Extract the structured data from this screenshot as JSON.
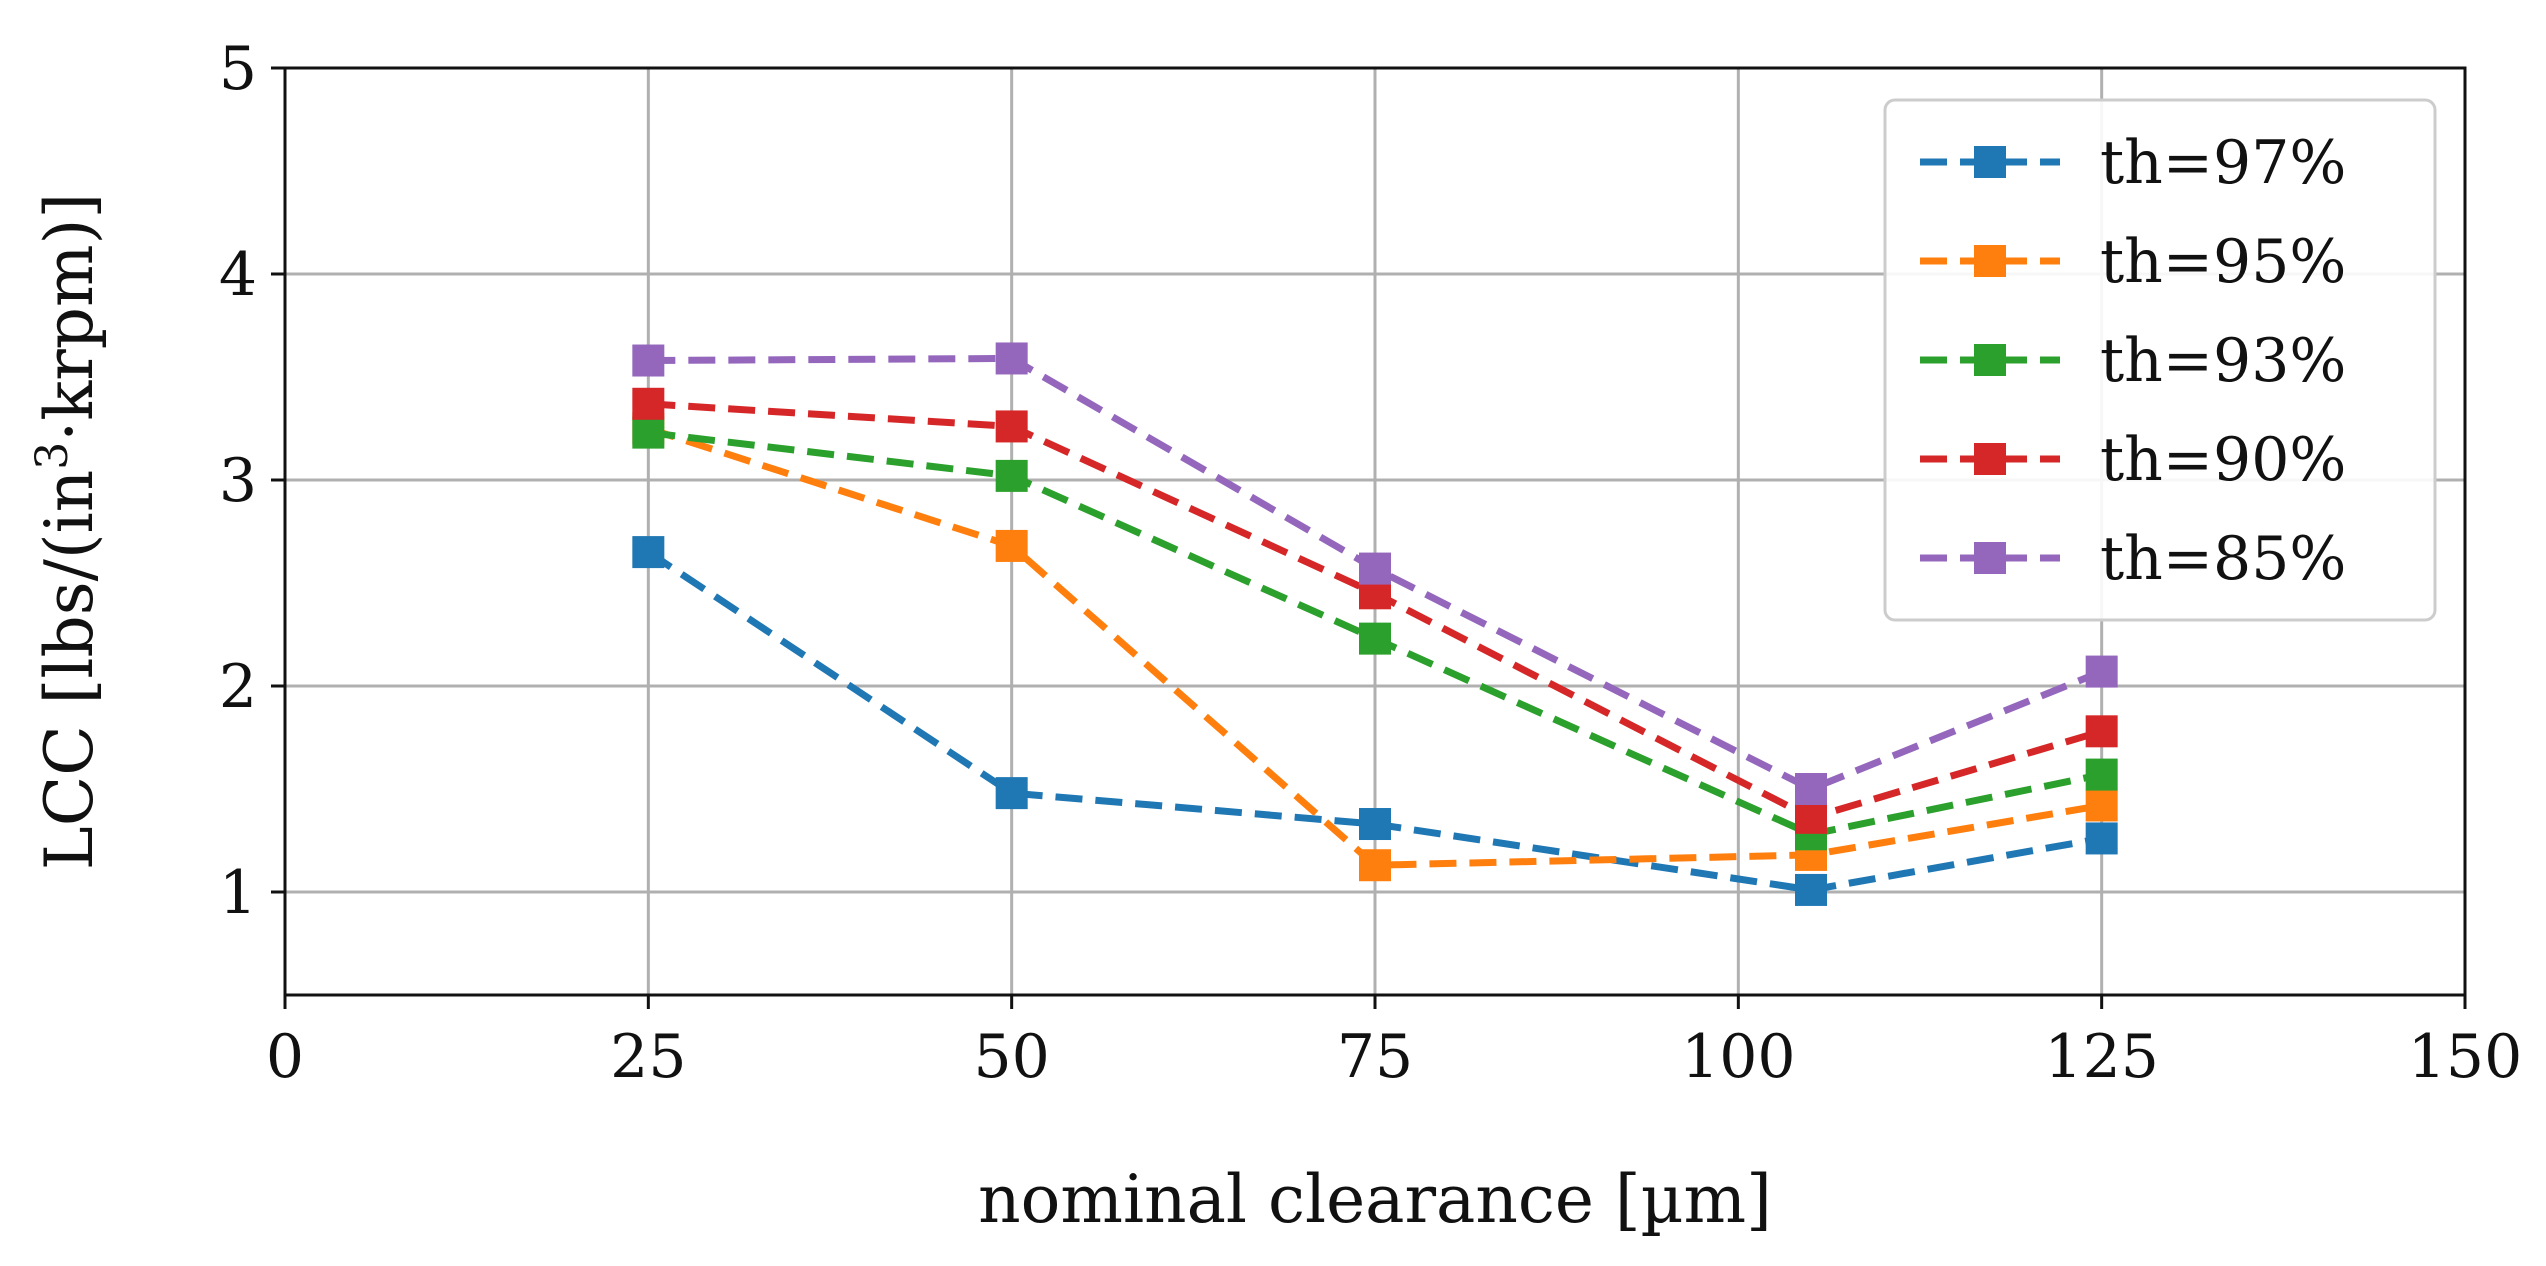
{
  "chart_data": {
    "type": "line",
    "title": "",
    "xlabel": "nominal clearance [µm]",
    "ylabel": {
      "prefix": "LCC [lbs/(in",
      "superscript": "3",
      "suffix": "·krpm)]"
    },
    "xlim": [
      0,
      150
    ],
    "ylim": [
      0.5,
      5
    ],
    "xticks": [
      0,
      25,
      50,
      75,
      100,
      125,
      150
    ],
    "yticks": [
      1,
      2,
      3,
      4,
      5
    ],
    "grid": true,
    "legend_position": "top-right",
    "x": [
      25,
      50,
      75,
      105,
      125
    ],
    "series": [
      {
        "name": "th=97%",
        "color": "#1f77b4",
        "values": [
          2.65,
          1.48,
          1.33,
          1.01,
          1.26
        ]
      },
      {
        "name": "th=95%",
        "color": "#ff7f0e",
        "values": [
          3.25,
          2.68,
          1.13,
          1.18,
          1.42
        ]
      },
      {
        "name": "th=93%",
        "color": "#2ca02c",
        "values": [
          3.23,
          3.02,
          2.23,
          1.28,
          1.57
        ]
      },
      {
        "name": "th=90%",
        "color": "#d62728",
        "values": [
          3.37,
          3.26,
          2.45,
          1.36,
          1.78
        ]
      },
      {
        "name": "th=85%",
        "color": "#9467bd",
        "values": [
          3.58,
          3.59,
          2.57,
          1.5,
          2.07
        ]
      }
    ]
  }
}
